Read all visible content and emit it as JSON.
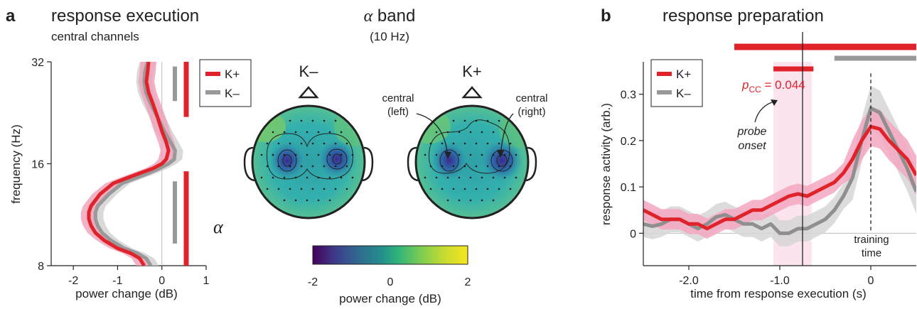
{
  "panel_a": {
    "letter": "a",
    "title": "response execution",
    "subtitle": "central channels",
    "band_label": "α",
    "chart_data": {
      "type": "line",
      "orientation": "horizontal",
      "xlabel": "power change (dB)",
      "ylabel": "frequency (Hz)",
      "xlim": [
        -2.5,
        1.0
      ],
      "ylim": [
        8,
        32
      ],
      "y_scale": "log",
      "xticks": [
        "-2",
        "-1",
        "0",
        "1"
      ],
      "yticks": [
        "8",
        "16",
        "32"
      ],
      "legend": [
        "K+",
        "K–"
      ],
      "legend_position": "top-right",
      "series": [
        {
          "name": "K+",
          "color": "#e0232b",
          "band_color": "#f0a0b8",
          "y": [
            32,
            30,
            28,
            26,
            24,
            22,
            20,
            18.5,
            17.5,
            16.5,
            16,
            15.5,
            15,
            14.5,
            14,
            13,
            12,
            11.5,
            11,
            10.5,
            10,
            9.5,
            9,
            8.7,
            8.4,
            8
          ],
          "x": [
            -0.3,
            -0.32,
            -0.35,
            -0.3,
            -0.2,
            -0.1,
            0.0,
            0.1,
            0.15,
            0.1,
            0.0,
            -0.2,
            -0.5,
            -0.8,
            -1.1,
            -1.4,
            -1.6,
            -1.65,
            -1.65,
            -1.6,
            -1.5,
            -1.3,
            -1.0,
            -0.7,
            -0.5,
            -0.4
          ]
        },
        {
          "name": "K–",
          "color": "#999999",
          "band_color": "#d0d0d0",
          "y": [
            32,
            30,
            28,
            26,
            24,
            22,
            20,
            18.5,
            17.5,
            16.5,
            16,
            15.5,
            15,
            14.5,
            14,
            13,
            12,
            11.5,
            11,
            10.5,
            10,
            9.5,
            9,
            8.7,
            8.4,
            8
          ],
          "x": [
            -0.32,
            -0.38,
            -0.4,
            -0.36,
            -0.25,
            -0.1,
            0.05,
            0.2,
            0.3,
            0.28,
            0.15,
            -0.05,
            -0.3,
            -0.6,
            -0.9,
            -1.2,
            -1.45,
            -1.5,
            -1.5,
            -1.45,
            -1.35,
            -1.15,
            -0.85,
            -0.55,
            -0.35,
            -0.25
          ]
        }
      ],
      "sig_bars": [
        {
          "color": "#999999",
          "y_ranges": [
            [
              24.5,
              31
            ],
            [
              9.3,
              14.2
            ]
          ]
        },
        {
          "color": "#e0232b",
          "y_ranges": [
            [
              22,
              32
            ],
            [
              8,
              15.2
            ]
          ]
        }
      ]
    }
  },
  "topo": {
    "title_symbol": "α",
    "title_word": " band",
    "subtitle": "(10 Hz)",
    "labels": {
      "k_minus": "K–",
      "k_plus": "K+",
      "central_left_1": "central",
      "central_left_2": "(left)",
      "central_right_1": "central",
      "central_right_2": "(right)"
    },
    "colorbar": {
      "label": "power change (dB)",
      "ticks": [
        "-2",
        "0",
        "2"
      ],
      "range": [
        -2,
        2
      ]
    }
  },
  "panel_b": {
    "letter": "b",
    "title": "response preparation",
    "annotation": {
      "p_main": "p",
      "p_sub": "CC",
      "p_value": " = 0.044",
      "probe_line1": "probe",
      "probe_line2": "onset",
      "training_line1": "training",
      "training_line2": "time"
    },
    "chart_data": {
      "type": "line",
      "xlabel": "time from response execution (s)",
      "ylabel": "response activity (arb.)",
      "xlim": [
        -2.5,
        0.5
      ],
      "ylim": [
        -0.07,
        0.37
      ],
      "xticks": [
        -2.0,
        -1.0,
        0
      ],
      "xtick_labels": [
        "-2.0",
        "-1.0",
        "0"
      ],
      "yticks": [
        0,
        0.1,
        0.2,
        0.3
      ],
      "ytick_labels": [
        "0",
        "0.1",
        "0.2",
        "0.3"
      ],
      "legend": [
        "K+",
        "K–"
      ],
      "legend_position": "top-left",
      "series": [
        {
          "name": "K+",
          "color": "#e0232b",
          "band_color": "#f3a7c0",
          "x": [
            -2.5,
            -2.4,
            -2.3,
            -2.2,
            -2.1,
            -2.0,
            -1.9,
            -1.8,
            -1.7,
            -1.6,
            -1.5,
            -1.4,
            -1.3,
            -1.2,
            -1.1,
            -1.0,
            -0.9,
            -0.8,
            -0.7,
            -0.6,
            -0.5,
            -0.4,
            -0.3,
            -0.2,
            -0.1,
            0.0,
            0.1,
            0.2,
            0.3,
            0.4,
            0.5
          ],
          "y": [
            0.05,
            0.04,
            0.03,
            0.03,
            0.03,
            0.02,
            0.02,
            0.01,
            0.02,
            0.03,
            0.03,
            0.04,
            0.05,
            0.05,
            0.06,
            0.07,
            0.08,
            0.085,
            0.08,
            0.09,
            0.1,
            0.11,
            0.13,
            0.16,
            0.2,
            0.23,
            0.225,
            0.2,
            0.18,
            0.16,
            0.125
          ]
        },
        {
          "name": "K–",
          "color": "#8f8f8f",
          "band_color": "#d6d6d6",
          "x": [
            -2.5,
            -2.4,
            -2.3,
            -2.2,
            -2.1,
            -2.0,
            -1.9,
            -1.8,
            -1.7,
            -1.6,
            -1.5,
            -1.4,
            -1.3,
            -1.2,
            -1.1,
            -1.0,
            -0.9,
            -0.8,
            -0.7,
            -0.6,
            -0.5,
            -0.4,
            -0.3,
            -0.2,
            -0.1,
            0.0,
            0.1,
            0.2,
            0.3,
            0.4,
            0.5
          ],
          "y": [
            0.02,
            0.015,
            0.02,
            0.03,
            0.03,
            0.02,
            0.01,
            0.02,
            0.035,
            0.04,
            0.03,
            0.02,
            0.02,
            0.01,
            0.02,
            0.0,
            0.0,
            0.01,
            0.01,
            0.02,
            0.03,
            0.05,
            0.08,
            0.12,
            0.2,
            0.27,
            0.26,
            0.22,
            0.18,
            0.14,
            0.09
          ]
        }
      ],
      "shaded_window": {
        "x0": -1.07,
        "x1": -0.65,
        "color": "#fce4ee"
      },
      "probe_onset_x": -0.75,
      "training_time_x": 0.0,
      "sig_bars": [
        {
          "color": "#e0232b",
          "x0": -1.5,
          "x1": 0.5,
          "row": 1
        },
        {
          "color": "#999999",
          "x0": -0.4,
          "x1": 0.5,
          "row": 2
        },
        {
          "color": "#e0232b",
          "x0": -1.07,
          "x1": -0.63,
          "row": 3
        }
      ]
    }
  }
}
